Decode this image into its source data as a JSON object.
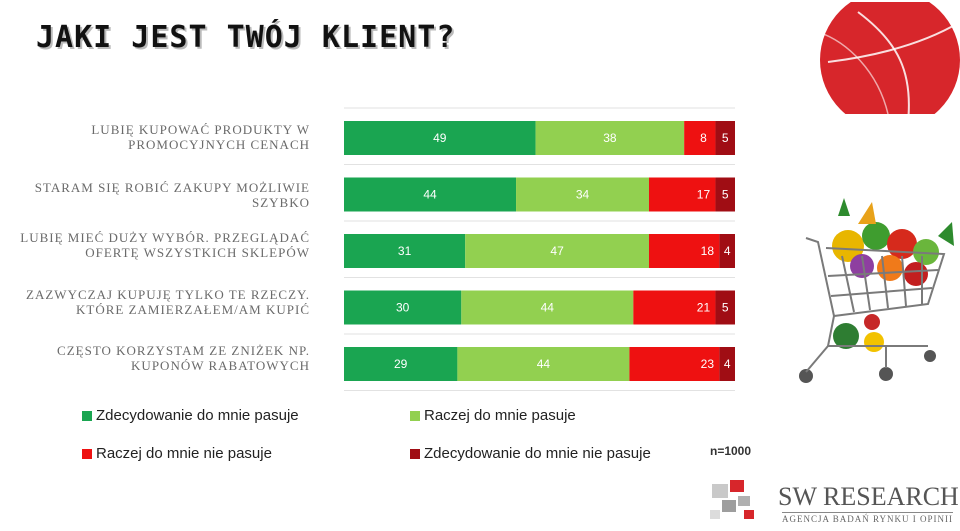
{
  "header": {
    "title": "JAKI JEST TWÓJ KLIENT?"
  },
  "chart_data": {
    "type": "bar",
    "stacked": true,
    "orientation": "horizontal",
    "percent_axis": [
      0,
      100
    ],
    "categories": [
      "LUBIĘ KUPOWAĆ PRODUKTY W PROMOCYJNYCH CENACH",
      "STARAM SIĘ ROBIĆ ZAKUPY MOŻLIWIE SZYBKO",
      "LUBIĘ MIEĆ DUŻY WYBÓR. PRZEGLĄDAĆ OFERTĘ WSZYSTKICH SKLEPÓW",
      "ZAZWYCZAJ KUPUJĘ TYLKO TE RZECZY. KTÓRE ZAMIERZAŁEM/AM KUPIĆ",
      "CZĘSTO KORZYSTAM ZE ZNIŻEK NP. KUPONÓW RABATOWYCH"
    ],
    "category_lines": [
      [
        "LUBIĘ KUPOWAĆ PRODUKTY W",
        "PROMOCYJNYCH CENACH"
      ],
      [
        "STARAM SIĘ ROBIĆ ZAKUPY MOŻLIWIE",
        "SZYBKO"
      ],
      [
        "LUBIĘ MIEĆ DUŻY WYBÓR. PRZEGLĄDAĆ",
        "OFERTĘ WSZYSTKICH SKLEPÓW"
      ],
      [
        "ZAZWYCZAJ KUPUJĘ TYLKO TE RZECZY.",
        "KTÓRE ZAMIERZAŁEM/AM KUPIĆ"
      ],
      [
        "CZĘSTO KORZYSTAM ZE ZNIŻEK NP.",
        "KUPONÓW RABATOWYCH"
      ]
    ],
    "series": [
      {
        "name": "Zdecydowanie do mnie pasuje",
        "color": "#1aa551",
        "values": [
          49,
          44,
          31,
          30,
          29
        ]
      },
      {
        "name": "Raczej do mnie pasuje",
        "color": "#92d050",
        "values": [
          38,
          34,
          47,
          44,
          44
        ]
      },
      {
        "name": "Raczej do mnie nie pasuje",
        "color": "#ee1111",
        "values": [
          8,
          17,
          18,
          21,
          23
        ]
      },
      {
        "name": "Zdecydowanie do mnie nie pasuje",
        "color": "#a00d14",
        "values": [
          5,
          5,
          4,
          5,
          4
        ]
      }
    ],
    "note": "n=1000"
  },
  "logo": {
    "main": "SW RESEARCH",
    "sub": "AGENCJA BADAŃ RYNKU I OPINII"
  },
  "colors": {
    "accent_red": "#d7262b"
  }
}
